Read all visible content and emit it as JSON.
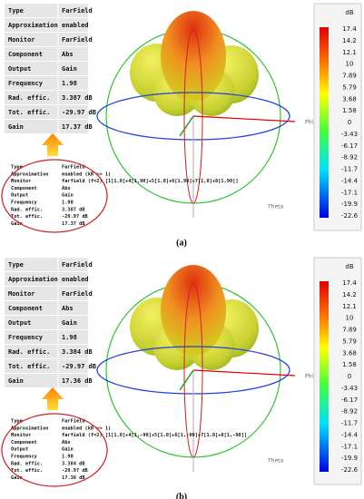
{
  "panels": [
    {
      "table": [
        [
          "Type",
          "FarField"
        ],
        [
          "Approximation",
          "enabled"
        ],
        [
          "Monitor",
          "FarField"
        ],
        [
          "Component",
          "Abs"
        ],
        [
          "Output",
          "Gain"
        ],
        [
          "Frequency",
          "1.98"
        ],
        [
          "Rad. effic.",
          "3.387 dB"
        ],
        [
          "Tot. effic.",
          "-29.97 dB"
        ],
        [
          "Gain",
          "17.37 dB"
        ]
      ],
      "info": [
        [
          "Type",
          "FarField"
        ],
        [
          "Approximation",
          "enabled (kR >> 1)"
        ],
        [
          "Monitor",
          "farfield (f=2) [1[1,0]+4[1,90]+5[1,0]+6[1,90]+7[1,0]+8[1,90]]"
        ],
        [
          "Component",
          "Abs"
        ],
        [
          "Output",
          "Gain"
        ],
        [
          "Frequency",
          "1.98"
        ],
        [
          "Rad. effic.",
          "3.387 dB"
        ],
        [
          "Tot. effic.",
          "-29.97 dB"
        ],
        [
          "Gain",
          "17.37 dB"
        ]
      ],
      "colorbar": {
        "unit": "dB",
        "labels": [
          "17.4",
          "14.2",
          "12.1",
          "10",
          "7.89",
          "5.79",
          "3.68",
          "1.58",
          "0",
          "-3.43",
          "-6.17",
          "-8.92",
          "-11.7",
          "-14.4",
          "-17.1",
          "-19.9",
          "-22.6"
        ]
      },
      "axes": {
        "phi": "Phi",
        "theta": "Theta"
      },
      "caption": "(a)"
    },
    {
      "table": [
        [
          "Type",
          "FarField"
        ],
        [
          "Approximation",
          "enabled"
        ],
        [
          "Monitor",
          "FarField"
        ],
        [
          "Component",
          "Abs"
        ],
        [
          "Output",
          "Gain"
        ],
        [
          "Frequency",
          "1.98"
        ],
        [
          "Rad. effic.",
          "3.384 dB"
        ],
        [
          "Tot. effic.",
          "-29.97 dB"
        ],
        [
          "Gain",
          "17.36 dB"
        ]
      ],
      "info": [
        [
          "Type",
          "FarField"
        ],
        [
          "Approximation",
          "enabled (kR >> 1)"
        ],
        [
          "Monitor",
          "farfield (f=2) [1[1,0]+4[1,-90]+5[1,0]+6[1,-90]+7[1,0]+8[1,-90]]"
        ],
        [
          "Component",
          "Abs"
        ],
        [
          "Output",
          "Gain"
        ],
        [
          "Frequency",
          "1.98"
        ],
        [
          "Rad. effic.",
          "3.384 dB"
        ],
        [
          "Tot. effic.",
          "-29.97 dB"
        ],
        [
          "Gain",
          "17.36 dB"
        ]
      ],
      "colorbar": {
        "unit": "dB",
        "labels": [
          "17.4",
          "14.2",
          "12.1",
          "10",
          "7.89",
          "5.79",
          "3.68",
          "1.58",
          "0",
          "-3.43",
          "-6.17",
          "-8.92",
          "-11.7",
          "-14.4",
          "-17.1",
          "-19.9",
          "-22.6"
        ]
      },
      "axes": {
        "phi": "Phi",
        "theta": "Theta"
      },
      "caption": "(b)"
    }
  ]
}
